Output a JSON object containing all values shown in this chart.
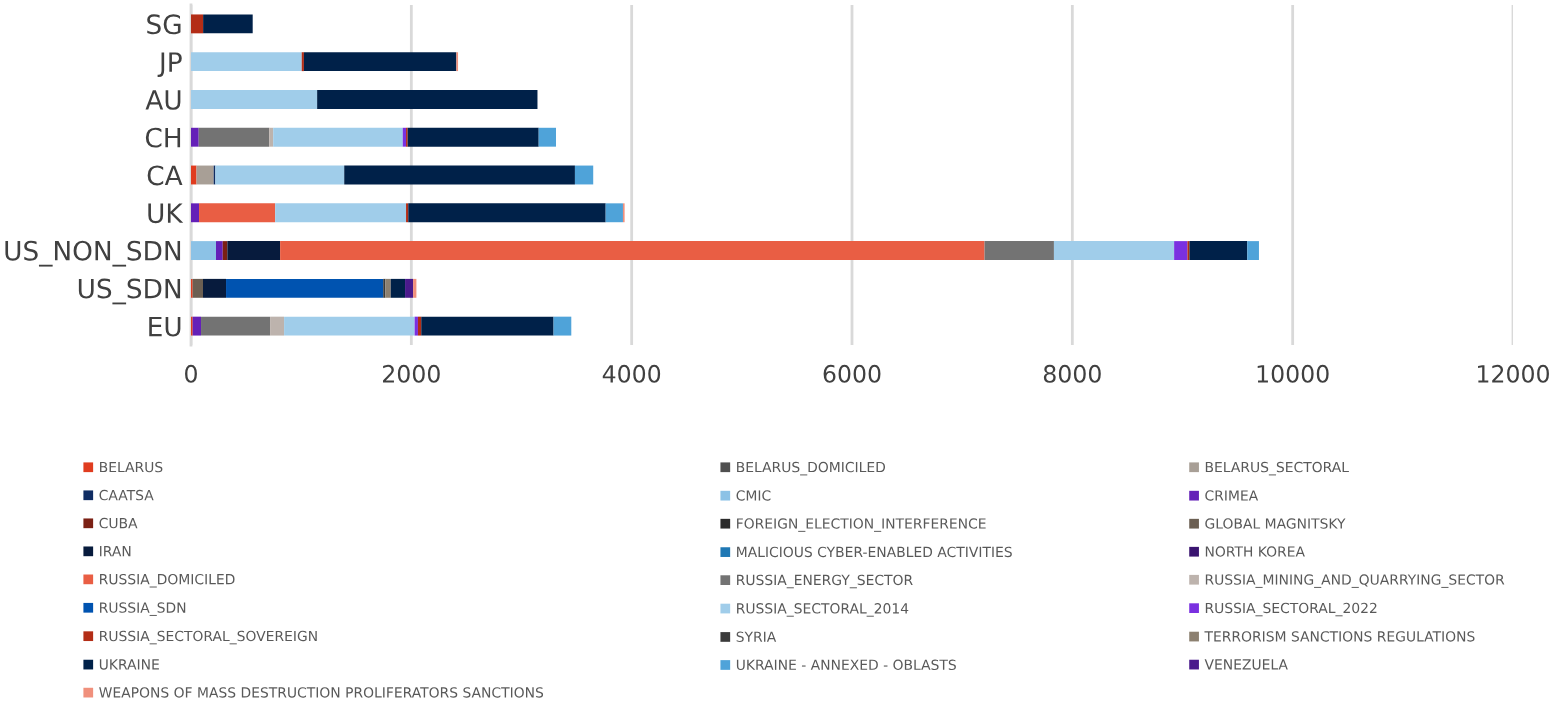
{
  "chart_data": {
    "type": "bar",
    "orientation": "horizontal",
    "stacked": true,
    "grid": "x",
    "legend": "bottom",
    "categories": [
      "SG",
      "JP",
      "AU",
      "CH",
      "CA",
      "UK",
      "US_NON_SDN",
      "US_SDN",
      "EU"
    ],
    "xlim": [
      0,
      12000
    ],
    "xticks": [
      0,
      2000,
      4000,
      6000,
      8000,
      10000,
      12000
    ],
    "series": [
      {
        "name": "BELARUS",
        "color": "#e03c1f",
        "values": [
          0,
          0,
          0,
          0,
          50,
          0,
          0,
          15,
          15
        ]
      },
      {
        "name": "BELARUS_DOMICILED",
        "color": "#4f4f4f",
        "values": [
          0,
          0,
          0,
          0,
          0,
          0,
          0,
          0,
          0
        ]
      },
      {
        "name": "BELARUS_SECTORAL",
        "color": "#a89f96",
        "values": [
          0,
          0,
          0,
          0,
          156,
          0,
          0,
          0,
          0
        ]
      },
      {
        "name": "CAATSA",
        "color": "#0f2d63",
        "values": [
          0,
          0,
          0,
          0,
          15,
          0,
          0,
          0,
          0
        ]
      },
      {
        "name": "CMIC",
        "color": "#8cc2e6",
        "values": [
          0,
          0,
          0,
          0,
          0,
          0,
          227,
          0,
          0
        ]
      },
      {
        "name": "CRIMEA",
        "color": "#6420b8",
        "values": [
          0,
          0,
          0,
          70,
          0,
          73,
          61,
          0,
          76
        ]
      },
      {
        "name": "CUBA",
        "color": "#7b2014",
        "values": [
          0,
          0,
          0,
          0,
          0,
          0,
          42,
          0,
          0
        ]
      },
      {
        "name": "FOREIGN_ELECTION_INTERFERENCE",
        "color": "#2b2b2b",
        "values": [
          0,
          0,
          0,
          0,
          0,
          0,
          0,
          0,
          0
        ]
      },
      {
        "name": "GLOBAL MAGNITSKY",
        "color": "#6b5f52",
        "values": [
          0,
          0,
          0,
          0,
          0,
          0,
          0,
          94,
          0
        ]
      },
      {
        "name": "IRAN",
        "color": "#071b3d",
        "values": [
          0,
          0,
          0,
          0,
          0,
          0,
          479,
          209,
          0
        ]
      },
      {
        "name": "MALICIOUS CYBER-ENABLED ACTIVITIES",
        "color": "#1f78b4",
        "values": [
          0,
          0,
          0,
          0,
          0,
          0,
          0,
          0,
          0
        ]
      },
      {
        "name": "NORTH KOREA",
        "color": "#3a1470",
        "values": [
          0,
          0,
          0,
          0,
          0,
          0,
          0,
          0,
          0
        ]
      },
      {
        "name": "RUSSIA_DOMICILED",
        "color": "#e95e44",
        "values": [
          0,
          0,
          0,
          0,
          0,
          691,
          6394,
          0,
          0
        ]
      },
      {
        "name": "RUSSIA_ENERGY_SECTOR",
        "color": "#737373",
        "values": [
          0,
          0,
          0,
          640,
          0,
          0,
          630,
          0,
          627
        ]
      },
      {
        "name": "RUSSIA_MINING_AND_QUARRYING_SECTOR",
        "color": "#bdb3ad",
        "values": [
          0,
          0,
          0,
          36,
          0,
          0,
          0,
          0,
          127
        ]
      },
      {
        "name": "RUSSIA_SDN",
        "color": "#0053b0",
        "values": [
          0,
          0,
          0,
          0,
          0,
          0,
          0,
          1427,
          0
        ]
      },
      {
        "name": "RUSSIA_SECTORAL_2014",
        "color": "#a0cdea",
        "values": [
          0,
          1005,
          1145,
          1176,
          1170,
          1188,
          1091,
          0,
          1185
        ]
      },
      {
        "name": "RUSSIA_SECTORAL_2022",
        "color": "#7a30e0",
        "values": [
          0,
          0,
          0,
          30,
          0,
          0,
          121,
          0,
          30
        ]
      },
      {
        "name": "RUSSIA_SECTORAL_SOVEREIGN",
        "color": "#b32d16",
        "values": [
          110,
          20,
          0,
          15,
          0,
          20,
          18,
          0,
          30
        ]
      },
      {
        "name": "SYRIA",
        "color": "#3b3b3b",
        "values": [
          0,
          0,
          0,
          0,
          0,
          0,
          0,
          20,
          0
        ]
      },
      {
        "name": "TERRORISM SANCTIONS REGULATIONS",
        "color": "#8c8070",
        "values": [
          0,
          0,
          0,
          0,
          0,
          0,
          0,
          48,
          0
        ]
      },
      {
        "name": "UKRAINE",
        "color": "#002149",
        "values": [
          450,
          1384,
          2000,
          1189,
          2094,
          1792,
          525,
          130,
          1201
        ]
      },
      {
        "name": "UKRAINE - ANNEXED - OBLASTS",
        "color": "#4fa3d9",
        "values": [
          0,
          0,
          0,
          157,
          166,
          157,
          106,
          0,
          161
        ]
      },
      {
        "name": "VENEZUELA",
        "color": "#4a1a8c",
        "values": [
          0,
          0,
          0,
          0,
          0,
          0,
          0,
          73,
          0
        ]
      },
      {
        "name": "WEAPONS OF MASS DESTRUCTION PROLIFERATORS SANCTIONS",
        "color": "#f0907c",
        "values": [
          0,
          15,
          0,
          0,
          0,
          15,
          0,
          30,
          0
        ]
      }
    ]
  }
}
